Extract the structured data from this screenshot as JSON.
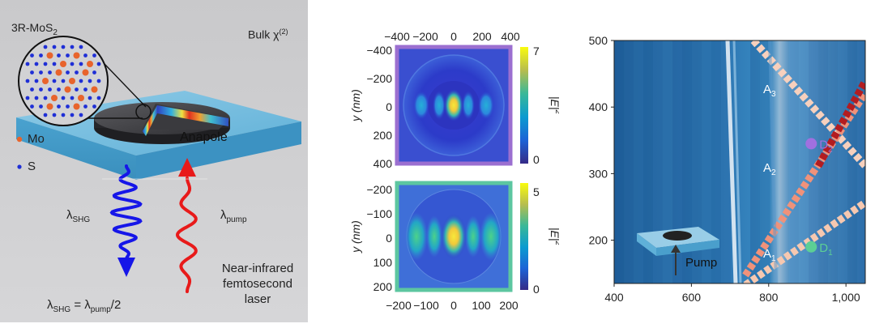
{
  "panel_a": {
    "material": "3R-MoS",
    "material_sub": "2",
    "bulk_label": "Bulk χ",
    "bulk_sup": "(2)",
    "mo_label": "Mo",
    "s_label": "S",
    "anapole_label": "Anapole",
    "shg_label": "λ",
    "shg_sub": "SHG",
    "pump_label": "λ",
    "pump_sub": "pump",
    "laser_line1": "Near-infrared",
    "laser_line2": "femtosecond",
    "laser_line3": "laser",
    "formula_lambda1": "λ",
    "formula_sub1": "SHG",
    "formula_eq": " = λ",
    "formula_sub2": "pump",
    "formula_end": "/2",
    "colors": {
      "mo": "#e8642c",
      "s": "#1f2fd6",
      "shg_wave": "#1616e8",
      "pump_wave": "#e81a1a"
    }
  },
  "panel_b": {
    "top": {
      "x_ticks": [
        "−400",
        "−200",
        "0",
        "200",
        "400"
      ],
      "y_ticks": [
        "−400",
        "−200",
        "0",
        "200",
        "400"
      ],
      "y_label": "y (nm)",
      "colorbar_ticks": [
        "7",
        "0"
      ],
      "colorbar_label_main": "|E|",
      "colorbar_label_sup": "2",
      "frame_color": "#9b6fd0"
    },
    "bottom": {
      "x_ticks": [
        "−200",
        "−100",
        "0",
        "100",
        "200"
      ],
      "y_ticks": [
        "−200",
        "−100",
        "0",
        "100",
        "200"
      ],
      "y_label": "y (nm)",
      "colorbar_ticks": [
        "5",
        "0"
      ],
      "colorbar_label_main": "|E|",
      "colorbar_label_sup": "2",
      "frame_color": "#5cc6a0"
    }
  },
  "panel_c": {
    "x_ticks": [
      "400",
      "600",
      "800",
      "1,000"
    ],
    "y_ticks": [
      "500",
      "400",
      "300",
      "200"
    ],
    "modes": [
      {
        "id": "A3",
        "main": "A",
        "sub": "3"
      },
      {
        "id": "A2",
        "main": "A",
        "sub": "2"
      },
      {
        "id": "A1",
        "main": "A",
        "sub": "1"
      }
    ],
    "points": [
      {
        "main": "D",
        "sub": "2",
        "color": "#a070e0",
        "x": 910,
        "y": 345
      },
      {
        "main": "D",
        "sub": "1",
        "color": "#5ccf95",
        "x": 910,
        "y": 190
      }
    ],
    "pump_label": "Pump"
  }
}
